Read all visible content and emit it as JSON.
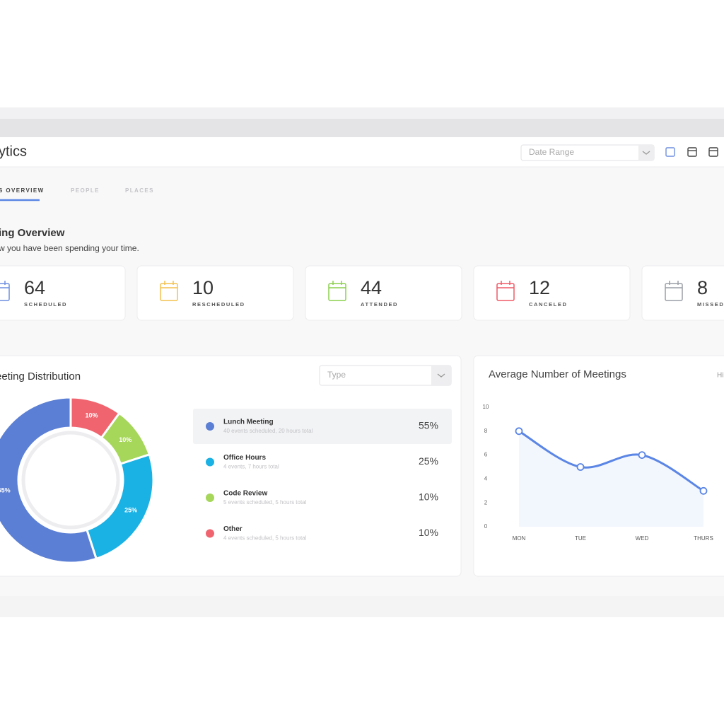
{
  "header": {
    "title": "ytics",
    "date_range": "Date Range"
  },
  "tabs": [
    "S OVERVIEW",
    "PEOPLE",
    "PLACES"
  ],
  "overview": {
    "title": "ing Overview",
    "subtitle": "w you have been spending your time."
  },
  "stats": [
    {
      "value": 64,
      "label": "SCHEDULED",
      "color": "#6f8fe0"
    },
    {
      "value": 10,
      "label": "RESCHEDULED",
      "color": "#f3c14e"
    },
    {
      "value": 44,
      "label": "ATTENDED",
      "color": "#8ccf4d"
    },
    {
      "value": 12,
      "label": "CANCELED",
      "color": "#ef5a66"
    },
    {
      "value": 8,
      "label": "MISSED",
      "color": "#9a9ea6"
    }
  ],
  "distribution": {
    "type": "pie",
    "title": "eeting Distribution",
    "filter": "Type",
    "categories": [
      "Lunch Meeting",
      "Office Hours",
      "Code Review",
      "Other"
    ],
    "details": [
      "40 events scheduled, 20 hours total",
      "4 events, 7 hours total",
      "5 events scheduled, 5 hours total",
      "4 events scheduled, 5 hours total"
    ],
    "values": [
      55,
      25,
      10,
      10
    ],
    "value_labels": [
      "55%",
      "25%",
      "10%",
      "10%"
    ],
    "colors": [
      "#5b7fd4",
      "#1ab1e4",
      "#a6d65a",
      "#f0646f"
    ]
  },
  "meetings": {
    "type": "line",
    "title": "Average Number of Meetings",
    "toggle": "Hi",
    "categories": [
      "MON",
      "TUE",
      "WED",
      "THURS"
    ],
    "values": [
      8,
      5,
      6,
      3
    ],
    "ylim": [
      0,
      10
    ],
    "yticks": [
      0,
      2,
      4,
      6,
      8,
      10
    ],
    "color": "#5b86e5"
  }
}
